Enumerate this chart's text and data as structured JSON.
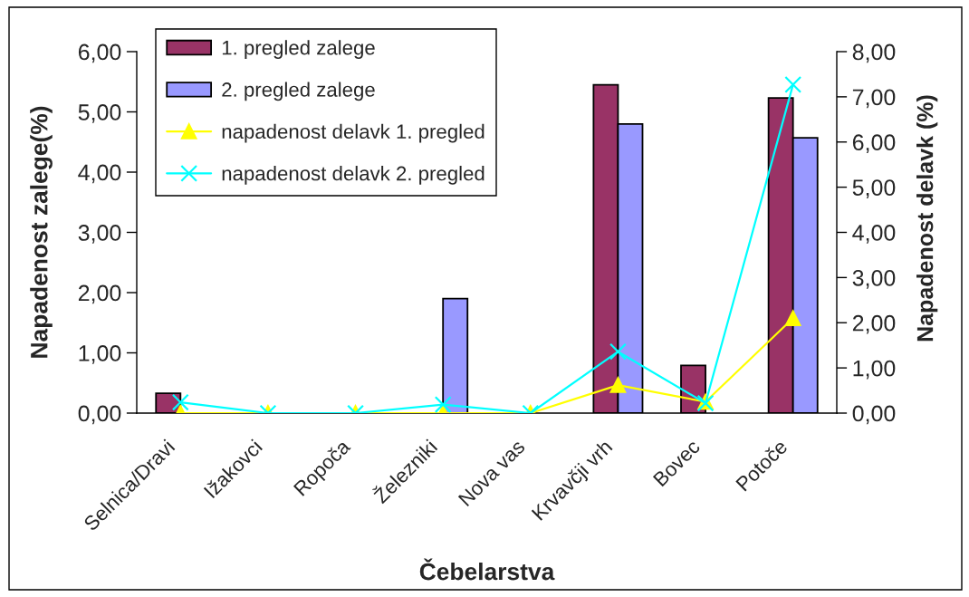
{
  "chart_data": {
    "type": "bar",
    "xlabel": "Čebelarstva",
    "ylabel": "Napadenost zalege(%)",
    "y2label": "Napadenost delavk (%)",
    "categories": [
      "Selnica/Dravi",
      "Ižakovci",
      "Ropoča",
      "Železniki",
      "Nova vas",
      "Krvavčji vrh",
      "Bovec",
      "Potoče"
    ],
    "series": [
      {
        "name": "1. pregled zalege",
        "type": "bar",
        "color": "#993366",
        "values": [
          0.33,
          0,
          0,
          0,
          0,
          5.45,
          0.79,
          5.23
        ]
      },
      {
        "name": "2. pregled zalege",
        "type": "bar",
        "color": "#9999ff",
        "values": [
          0,
          0,
          0,
          1.9,
          0,
          4.8,
          0,
          4.57
        ]
      },
      {
        "name": "napadenost delavk 1. pregled",
        "type": "line",
        "axis": "y2",
        "color": "#ffff00",
        "marker": "triangle",
        "values": [
          0,
          0,
          0,
          0,
          0,
          0.62,
          0.25,
          2.1
        ]
      },
      {
        "name": "napadenost delavk 2. pregled",
        "type": "line",
        "axis": "y2",
        "color": "#00ffff",
        "marker": "cross",
        "values": [
          0.24,
          0,
          0,
          0.19,
          0,
          1.36,
          0.22,
          7.27
        ]
      }
    ],
    "ylim": [
      0,
      6
    ],
    "yticks": [
      {
        "value": 0,
        "label": "0,00"
      },
      {
        "value": 1,
        "label": "1,00"
      },
      {
        "value": 2,
        "label": "2,00"
      },
      {
        "value": 3,
        "label": "3,00"
      },
      {
        "value": 4,
        "label": "4,00"
      },
      {
        "value": 5,
        "label": "5,00"
      },
      {
        "value": 6,
        "label": "6,00"
      }
    ],
    "y2lim": [
      0,
      8
    ],
    "y2ticks": [
      {
        "value": 0,
        "label": "0,00"
      },
      {
        "value": 1,
        "label": "1,00"
      },
      {
        "value": 2,
        "label": "2,00"
      },
      {
        "value": 3,
        "label": "3,00"
      },
      {
        "value": 4,
        "label": "4,00"
      },
      {
        "value": 5,
        "label": "5,00"
      },
      {
        "value": 6,
        "label": "6,00"
      },
      {
        "value": 7,
        "label": "7,00"
      },
      {
        "value": 8,
        "label": "8,00"
      }
    ],
    "grid": false,
    "legend": "top left"
  }
}
